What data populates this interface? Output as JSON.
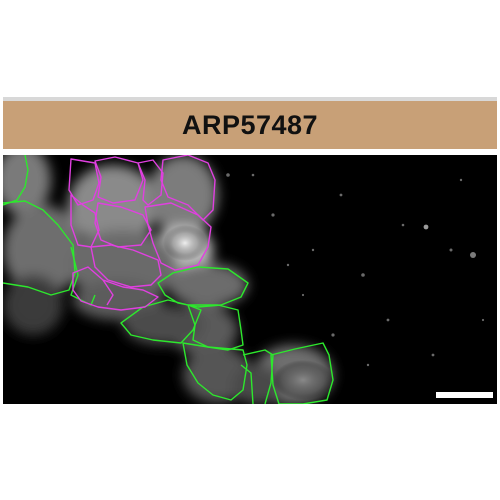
{
  "figure": {
    "title": "ARP57487",
    "colors": {
      "title_bar": "#c8a077",
      "outline_green": "#2de82d",
      "outline_magenta": "#e040e0",
      "scale_bar": "#ffffff",
      "background": "#000000"
    }
  }
}
